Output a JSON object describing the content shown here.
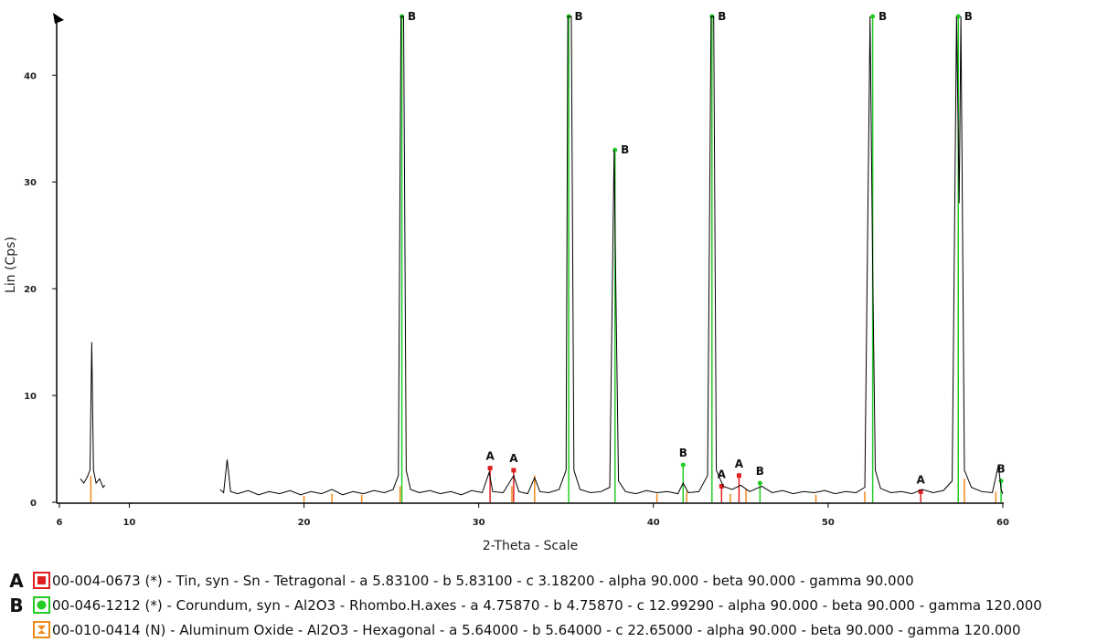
{
  "chart_data": {
    "type": "line",
    "x_label": "2-Theta - Scale",
    "y_label": "Lin (Cps)",
    "xlim": [
      6,
      60
    ],
    "ylim": [
      0,
      45.5
    ],
    "xticks": [
      6,
      10,
      20,
      30,
      40,
      50,
      60
    ],
    "yticks": [
      0,
      10,
      20,
      30,
      40
    ],
    "color": "#000000",
    "x": [
      7.2,
      7.4,
      7.6,
      7.75,
      7.85,
      7.95,
      8.1,
      8.3,
      8.5,
      8.6,
      11,
      15.2,
      15.4,
      15.6,
      15.8,
      16.2,
      16.8,
      17.4,
      18,
      18.6,
      19.2,
      19.8,
      20.4,
      21,
      21.6,
      22.2,
      22.8,
      23.4,
      24,
      24.6,
      25.1,
      25.4,
      25.55,
      25.7,
      25.85,
      26.1,
      26.6,
      27.2,
      27.8,
      28.4,
      29,
      29.6,
      30.2,
      30.6,
      30.8,
      31.4,
      32,
      32.3,
      32.8,
      33.2,
      33.5,
      34,
      34.6,
      35.0,
      35.1,
      35.3,
      35.45,
      35.8,
      36.4,
      37,
      37.5,
      37.75,
      37.85,
      38,
      38.4,
      39,
      39.6,
      40.2,
      40.8,
      41.4,
      41.7,
      42,
      42.6,
      43.1,
      43.3,
      43.45,
      43.6,
      44,
      44.5,
      45,
      45.5,
      46.2,
      46.8,
      47.4,
      48,
      48.6,
      49.2,
      49.8,
      50.4,
      51,
      51.6,
      52.1,
      52.4,
      52.55,
      52.7,
      53,
      53.6,
      54.2,
      54.8,
      55.4,
      56,
      56.6,
      57.1,
      57.35,
      57.5,
      57.6,
      57.8,
      58.2,
      58.8,
      59.4,
      59.75,
      59.9,
      60
    ],
    "values": [
      2.2,
      1.8,
      2.4,
      3,
      15,
      3,
      1.8,
      2.2,
      1.4,
      1.6,
      null,
      1.2,
      0.9,
      4,
      1.0,
      0.8,
      1.1,
      0.7,
      1.0,
      0.8,
      1.1,
      0.7,
      1.0,
      0.8,
      1.2,
      0.7,
      1.0,
      0.8,
      1.1,
      0.9,
      1.2,
      2.5,
      45.5,
      45.5,
      3,
      1.2,
      0.9,
      1.1,
      0.8,
      1.0,
      0.7,
      1.1,
      0.9,
      2.8,
      1.0,
      0.9,
      2.5,
      1.0,
      0.8,
      2.3,
      1.0,
      0.9,
      1.2,
      3,
      45.5,
      45.5,
      3,
      1.2,
      0.9,
      1.0,
      1.4,
      33,
      20,
      2,
      1.0,
      0.8,
      1.1,
      0.9,
      1.0,
      0.8,
      1.8,
      0.9,
      1.0,
      2.5,
      45.5,
      45.5,
      3,
      1.5,
      1.2,
      1.6,
      1.0,
      1.5,
      0.9,
      1.1,
      0.8,
      1.0,
      0.9,
      1.1,
      0.8,
      1.0,
      0.9,
      1.4,
      45.5,
      22,
      3,
      1.3,
      0.9,
      1.0,
      0.8,
      1.2,
      0.9,
      1.1,
      2,
      45.5,
      28,
      45.5,
      3,
      1.4,
      1.0,
      0.9,
      3.5,
      1.2,
      0.8
    ],
    "phases": [
      {
        "label": "A",
        "pattern": "00-004-0673 (*) - Tin, syn - Sn - Tetragonal - a 5.83100 - b 5.83100 - c 3.18200 - alpha 90.000 - beta 90.000 - gamma 90.000",
        "color": "#e02020",
        "marker": "square",
        "labeled": true,
        "x": [
          30.65,
          32.0,
          43.9,
          44.9,
          55.3
        ],
        "heights": [
          3.2,
          3.0,
          1.5,
          2.5,
          1.0
        ]
      },
      {
        "label": "B",
        "pattern": "00-046-1212 (*) - Corundum, syn - Al2O3 - Rhombo.H.axes - a 4.75870 - b 4.75870 - c 12.99290 - alpha 90.000 - beta 90.000 - gamma 120.000",
        "color": "#22cc22",
        "marker": "circle",
        "labeled": true,
        "x": [
          25.6,
          35.15,
          37.8,
          41.7,
          43.35,
          46.1,
          52.55,
          57.45,
          59.9
        ],
        "heights": [
          45.5,
          45.5,
          33,
          3.5,
          45.5,
          1.8,
          45.5,
          45.5,
          2.0
        ]
      },
      {
        "pattern": "00-010-0414 (N) - Aluminum Oxide - Al2O3 - Hexagonal - a 5.64000 - b 5.64000 - c 22.65000 - alpha 90.000 - beta 90.000 - gamma 120.000",
        "color": "#f08a1c",
        "marker": "hourglass",
        "labeled": false,
        "x": [
          7.8,
          20,
          21.6,
          23.3,
          25.5,
          31.9,
          33.2,
          40.2,
          41.9,
          44.4,
          45.3,
          49.3,
          52.1,
          57.8,
          59.6
        ],
        "heights": [
          2.5,
          0.6,
          0.8,
          0.7,
          1.5,
          1.5,
          2.5,
          0.8,
          1.0,
          0.8,
          1.2,
          0.7,
          1.0,
          2.2,
          1.0
        ]
      }
    ]
  }
}
